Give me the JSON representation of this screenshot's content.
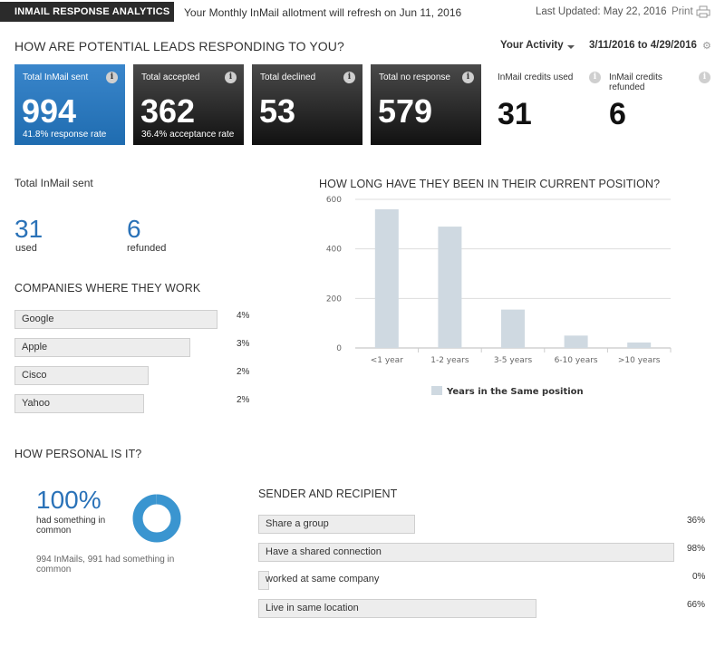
{
  "top": {
    "brand": "INMAIL RESPONSE ANALYTICS",
    "allotment": "Your Monthly InMail allotment will refresh on Jun 11, 2016",
    "last_updated": "Last Updated: May 22, 2016",
    "print": "Print"
  },
  "header": {
    "title": "HOW ARE POTENTIAL LEADS RESPONDING TO YOU?",
    "activity": "Your Activity",
    "date_range": "3/11/2016 to 4/29/2016"
  },
  "tiles": [
    {
      "label": "Total InMail sent",
      "value": "994",
      "sub": "41.8% response rate"
    },
    {
      "label": "Total accepted",
      "value": "362",
      "sub": "36.4% acceptance rate"
    },
    {
      "label": "Total declined",
      "value": "53",
      "sub": ""
    },
    {
      "label": "Total no response",
      "value": "579",
      "sub": ""
    },
    {
      "label": "InMail credits used",
      "value": "31"
    },
    {
      "label": "InMail credits refunded",
      "value": "6"
    }
  ],
  "sent": {
    "title": "Total InMail sent",
    "used_value": "31",
    "used_label": "used",
    "refunded_value": "6",
    "refunded_label": "refunded"
  },
  "companies": {
    "title": "COMPANIES WHERE THEY WORK",
    "items": [
      {
        "name": "Google",
        "pct": "4%"
      },
      {
        "name": "Apple",
        "pct": "3%"
      },
      {
        "name": "Cisco",
        "pct": "2%"
      },
      {
        "name": "Yahoo",
        "pct": "2%"
      }
    ]
  },
  "position": {
    "title": "HOW LONG HAVE THEY BEEN IN THEIR CURRENT POSITION?"
  },
  "chart_data": {
    "type": "bar",
    "title": "HOW LONG HAVE THEY BEEN IN THEIR CURRENT POSITION?",
    "categories": [
      "<1 year",
      "1-2 years",
      "3-5 years",
      "6-10 years",
      ">10 years"
    ],
    "series": [
      {
        "name": "Years in the Same position",
        "values": [
          560,
          490,
          155,
          50,
          22
        ]
      }
    ],
    "yticks": [
      0,
      200,
      400,
      600
    ],
    "ylim": [
      0,
      600
    ],
    "grid": true,
    "legend": "bottom",
    "bar_color": "#cfd9e1"
  },
  "personal": {
    "title": "HOW PERSONAL IS IT?",
    "big": "100%",
    "sub": "had something in common",
    "note": "994 InMails, 991 had something in common",
    "donut_fraction": 0.997,
    "donut_color": "#3a95d0"
  },
  "sender": {
    "title": "SENDER AND RECIPIENT",
    "items": [
      {
        "name": "Share a group",
        "pct": "36%"
      },
      {
        "name": "Have a shared connection",
        "pct": "98%"
      },
      {
        "name": "worked at same company",
        "pct": "0%"
      },
      {
        "name": "Live in same location",
        "pct": "66%"
      }
    ]
  },
  "colors": {
    "accent_blue": "#2a72b8",
    "tile_blue": "#2a7bc1",
    "tile_dark": "#222222"
  }
}
